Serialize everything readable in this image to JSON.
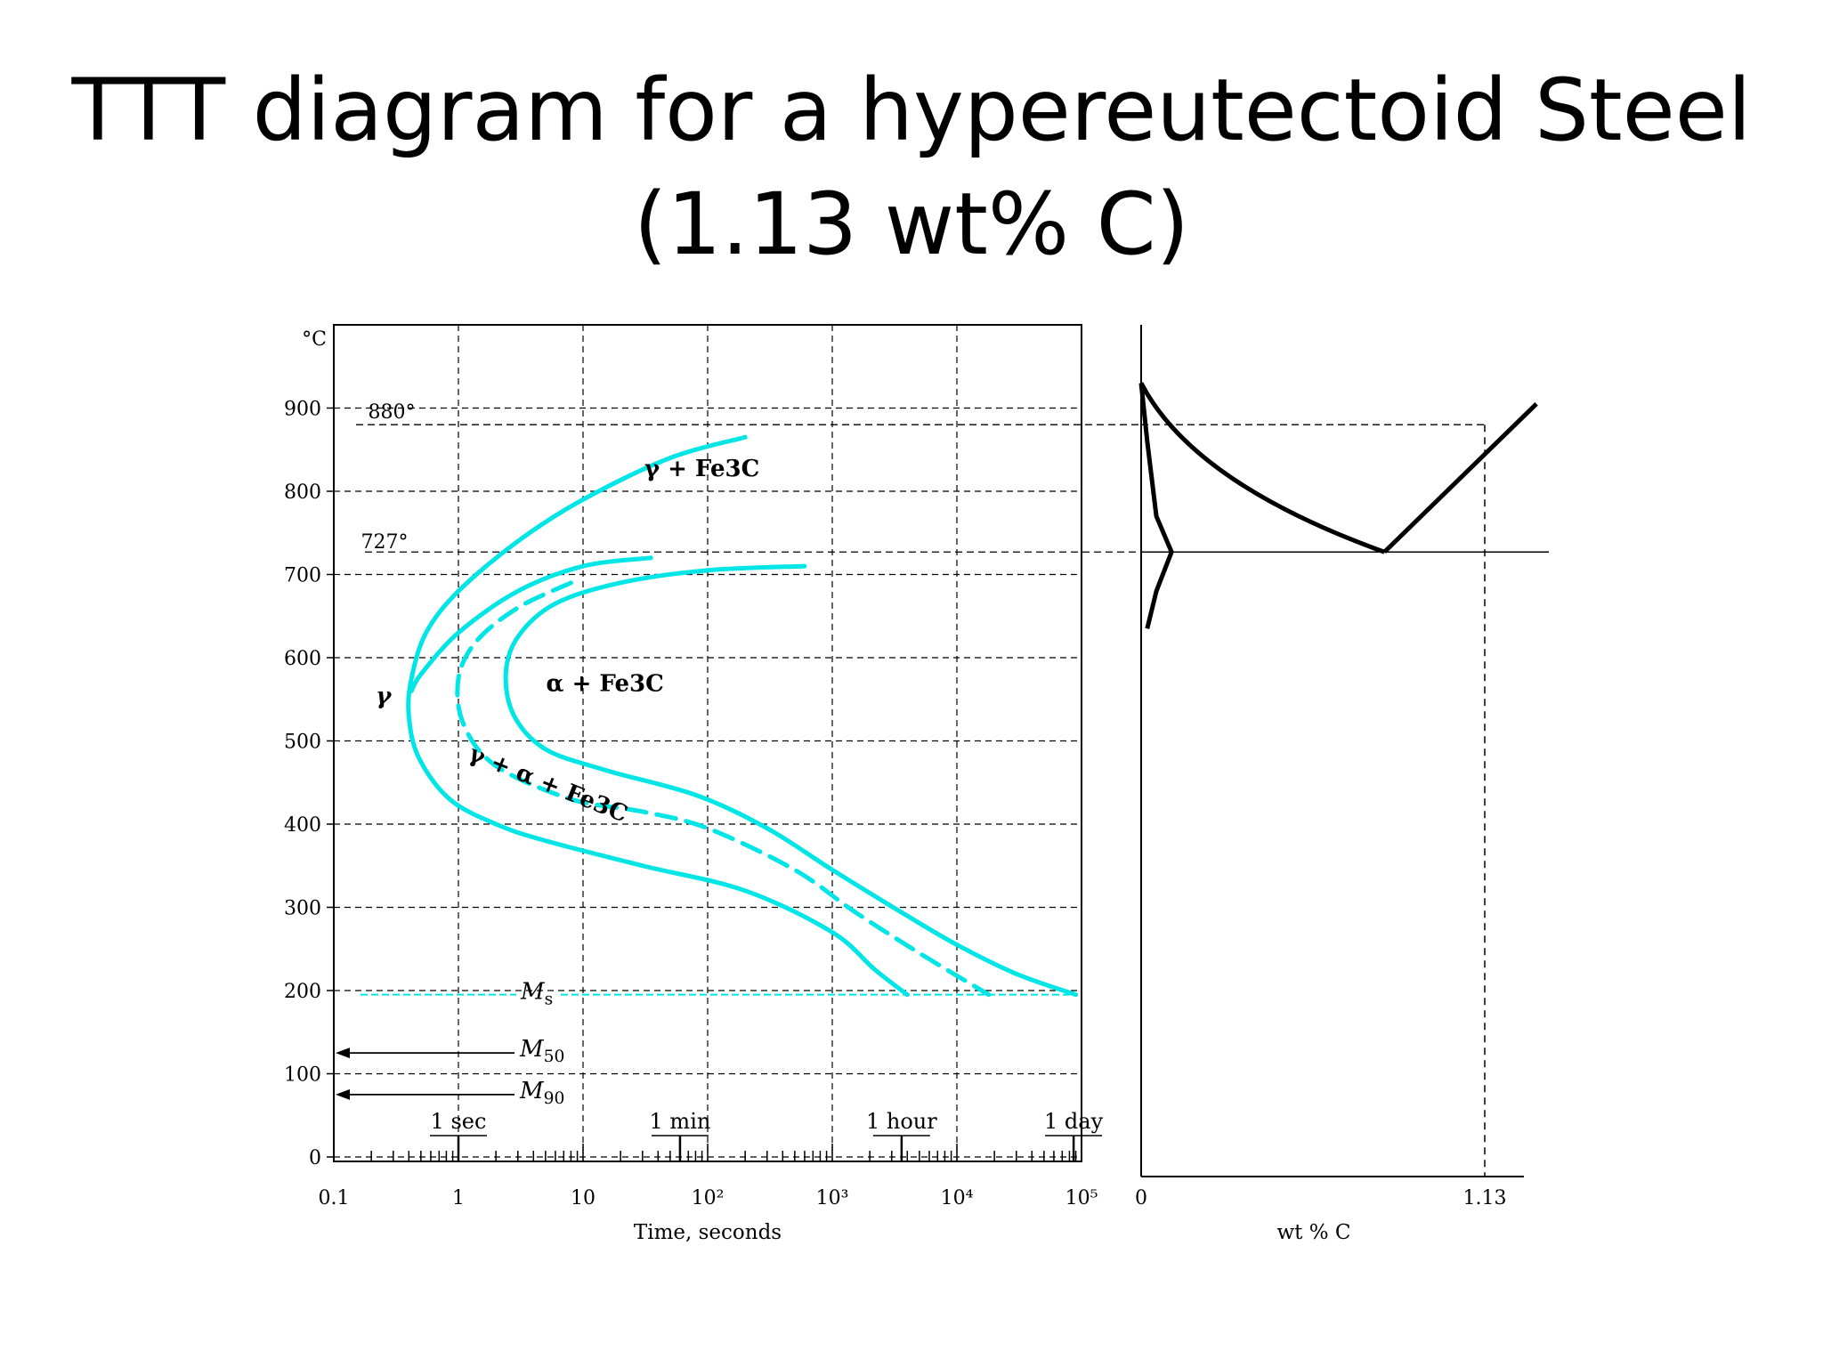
{
  "slide": {
    "title_line1": "TTT diagram for a hypereutectoid Steel",
    "title_line2": "(1.13 wt% C)"
  },
  "colors": {
    "curve": "#00e5e5",
    "ink": "#000000"
  },
  "chart_data": [
    {
      "type": "line",
      "title": "",
      "xlabel": "Time, seconds",
      "ylabel": "°C",
      "xscale": "log",
      "xlim": [
        0.1,
        100000
      ],
      "ylim": [
        0,
        900
      ],
      "x_ticks": [
        "0.1",
        "1",
        "10",
        "10²",
        "10³",
        "10⁴",
        "10⁵"
      ],
      "y_ticks": [
        "0",
        "100",
        "200",
        "300",
        "400",
        "500",
        "600",
        "700",
        "800",
        "900"
      ],
      "grid": true,
      "reference_lines": [
        {
          "label": "880°",
          "temp": 880
        },
        {
          "label": "727°",
          "temp": 727
        },
        {
          "label": "Ms",
          "sub": "s",
          "main": "M",
          "temp": 195
        }
      ],
      "martensite_arrows": [
        {
          "main": "M",
          "sub": "50",
          "temp": 125
        },
        {
          "main": "M",
          "sub": "90",
          "temp": 75
        }
      ],
      "time_markers": [
        {
          "label": "1 sec",
          "time": 1
        },
        {
          "label": "1 min",
          "time": 60
        },
        {
          "label": "1 hour",
          "time": 3600
        },
        {
          "label": "1 day",
          "time": 86400
        }
      ],
      "region_labels": [
        {
          "text": "γ",
          "time": 0.25,
          "temp": 545
        },
        {
          "text": "γ + Fe3C",
          "time": 90,
          "temp": 818
        },
        {
          "text": "α + Fe3C",
          "time": 15,
          "temp": 560
        },
        {
          "text": "γ + α + Fe3C",
          "time": 5,
          "temp": 440
        }
      ],
      "series": [
        {
          "style": "solid",
          "points": [
            [
              200,
              865
            ],
            [
              50,
              840
            ],
            [
              10,
              790
            ],
            [
              3,
              740
            ],
            [
              1,
              680
            ],
            [
              0.55,
              630
            ],
            [
              0.42,
              575
            ],
            [
              0.4,
              530
            ],
            [
              0.48,
              480
            ],
            [
              0.85,
              430
            ],
            [
              2,
              400
            ],
            [
              5,
              380
            ],
            [
              30,
              350
            ],
            [
              200,
              320
            ],
            [
              1000,
              270
            ],
            [
              2200,
              225
            ],
            [
              4000,
              195
            ]
          ]
        },
        {
          "style": "solid",
          "points": [
            [
              35,
              720
            ],
            [
              10,
              710
            ],
            [
              3,
              680
            ],
            [
              1,
              630
            ],
            [
              0.5,
              580
            ],
            [
              0.42,
              560
            ]
          ]
        },
        {
          "style": "dashed",
          "points": [
            [
              8,
              690
            ],
            [
              3,
              660
            ],
            [
              1.4,
              620
            ],
            [
              1,
              575
            ],
            [
              1.1,
              520
            ],
            [
              2,
              470
            ],
            [
              8,
              430
            ],
            [
              30,
              415
            ],
            [
              100,
              395
            ],
            [
              500,
              345
            ],
            [
              1500,
              295
            ],
            [
              5000,
              245
            ],
            [
              18000,
              195
            ]
          ]
        },
        {
          "style": "solid",
          "points": [
            [
              600,
              710
            ],
            [
              100,
              705
            ],
            [
              20,
              690
            ],
            [
              6,
              665
            ],
            [
              3,
              625
            ],
            [
              2.4,
              580
            ],
            [
              2.8,
              530
            ],
            [
              5,
              490
            ],
            [
              15,
              465
            ],
            [
              80,
              435
            ],
            [
              300,
              395
            ],
            [
              1000,
              345
            ],
            [
              3500,
              295
            ],
            [
              10000,
              255
            ],
            [
              30000,
              220
            ],
            [
              90000,
              195
            ]
          ]
        }
      ]
    },
    {
      "type": "line",
      "title": "",
      "xlabel": "wt % C",
      "ylabel": "",
      "x_ticks": [
        "0",
        "1.13"
      ],
      "composition_marker": 1.13,
      "series": [
        {
          "style": "solid",
          "points": [
            [
              0,
              930
            ],
            [
              0.8,
              727
            ]
          ]
        },
        {
          "style": "solid",
          "points": [
            [
              0.8,
              727
            ],
            [
              1.3,
              905
            ]
          ]
        },
        {
          "style": "solid",
          "points": [
            [
              0,
              930
            ],
            [
              0.02,
              860
            ],
            [
              0.05,
              770
            ],
            [
              0.1,
              727
            ],
            [
              0.05,
              680
            ],
            [
              0.02,
              635
            ]
          ]
        }
      ],
      "horizontal_lines": [
        727,
        880
      ]
    }
  ]
}
